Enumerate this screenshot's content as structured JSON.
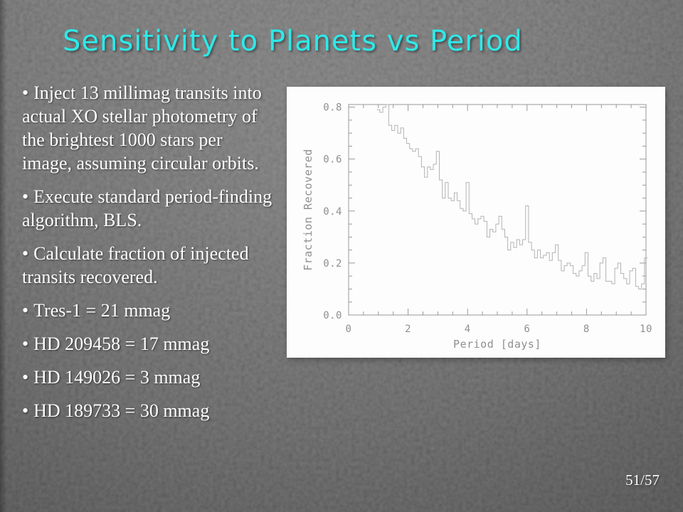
{
  "title": "Sensitivity to Planets vs Period",
  "bullet_char": "•",
  "bullets": [
    [
      "Inject 13 millimag transits into",
      "actual XO stellar photometry of",
      "the brightest 1000 stars per",
      "image, assuming circular orbits."
    ],
    [
      "Execute standard period-finding",
      "algorithm, BLS."
    ],
    [
      "Calculate fraction of injected",
      "transits recovered."
    ],
    [
      "Tres-1 = 21 mmag"
    ],
    [
      "HD 209458 = 17 mmag"
    ],
    [
      "HD 149026 = 3 mmag"
    ],
    [
      "HD 189733 = 30 mmag"
    ]
  ],
  "footer": {
    "page_indicator": "51/57"
  },
  "colors": {
    "title": "#2ee9e9",
    "body_text": "#ffffff",
    "background": "#676767",
    "chart_background": "#fdfdfd",
    "chart_axis": "#999999",
    "chart_line": "#b3b3b3",
    "chart_label": "#8f8f8f"
  },
  "chart_data": {
    "type": "line",
    "line_style": "step",
    "title": "",
    "xlabel": "Period [days]",
    "ylabel": "Fraction Recovered",
    "xlim": [
      0,
      10
    ],
    "ylim": [
      0,
      0.81
    ],
    "xticks": [
      0,
      2,
      4,
      6,
      8,
      10
    ],
    "yticks": [
      0.0,
      0.2,
      0.4,
      0.6,
      0.8
    ],
    "x_minor_interval": 0.5,
    "y_minor_interval": 0.05,
    "grid": false,
    "x_start": 1.0,
    "x_step": 0.1,
    "values": [
      0.79,
      0.78,
      0.8,
      0.81,
      0.73,
      0.71,
      0.73,
      0.7,
      0.72,
      0.68,
      0.66,
      0.64,
      0.63,
      0.64,
      0.61,
      0.57,
      0.53,
      0.57,
      0.56,
      0.58,
      0.63,
      0.52,
      0.45,
      0.51,
      0.45,
      0.44,
      0.47,
      0.44,
      0.41,
      0.4,
      0.51,
      0.39,
      0.37,
      0.35,
      0.37,
      0.38,
      0.36,
      0.3,
      0.33,
      0.32,
      0.35,
      0.38,
      0.33,
      0.3,
      0.25,
      0.28,
      0.26,
      0.29,
      0.27,
      0.29,
      0.42,
      0.28,
      0.25,
      0.22,
      0.25,
      0.22,
      0.23,
      0.24,
      0.21,
      0.24,
      0.27,
      0.21,
      0.17,
      0.19,
      0.2,
      0.19,
      0.16,
      0.15,
      0.17,
      0.19,
      0.24,
      0.15,
      0.13,
      0.16,
      0.14,
      0.2,
      0.22,
      0.13,
      0.13,
      0.12,
      0.18,
      0.2,
      0.16,
      0.14,
      0.12,
      0.17,
      0.18,
      0.11,
      0.1,
      0.12,
      0.22
    ]
  }
}
